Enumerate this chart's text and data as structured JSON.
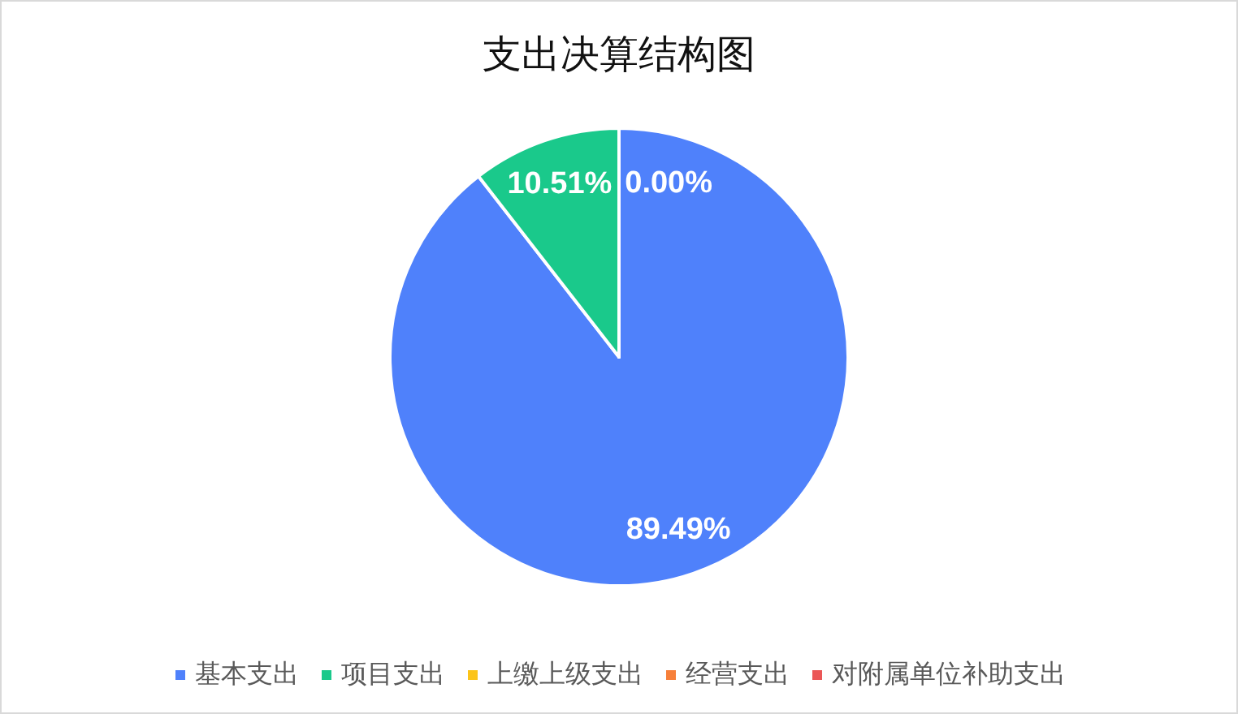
{
  "chart_data": {
    "type": "pie",
    "title": "支出决算结构图",
    "categories": [
      "基本支出",
      "项目支出",
      "上缴上级支出",
      "经营支出",
      "对附属单位补助支出"
    ],
    "values": [
      89.49,
      10.51,
      0,
      0,
      0
    ],
    "colors": [
      "#4f81fb",
      "#1ac98b",
      "#fcc419",
      "#f7803a",
      "#eb5757"
    ],
    "value_labels": [
      "89.49%",
      "10.51%",
      "0.00%",
      null,
      null
    ],
    "legend": "bottom"
  }
}
